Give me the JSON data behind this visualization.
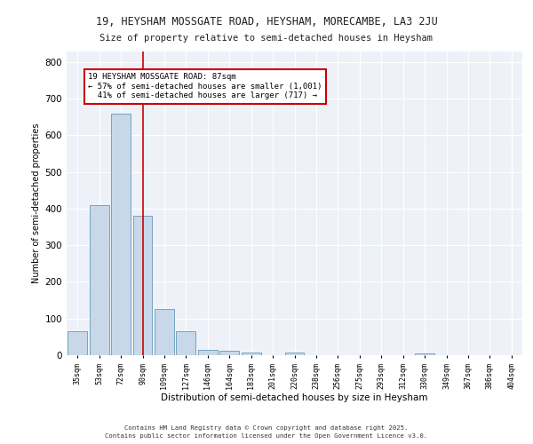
{
  "title1": "19, HEYSHAM MOSSGATE ROAD, HEYSHAM, MORECAMBE, LA3 2JU",
  "title2": "Size of property relative to semi-detached houses in Heysham",
  "xlabel": "Distribution of semi-detached houses by size in Heysham",
  "ylabel": "Number of semi-detached properties",
  "bin_labels": [
    "35sqm",
    "53sqm",
    "72sqm",
    "90sqm",
    "109sqm",
    "127sqm",
    "146sqm",
    "164sqm",
    "183sqm",
    "201sqm",
    "220sqm",
    "238sqm",
    "256sqm",
    "275sqm",
    "293sqm",
    "312sqm",
    "330sqm",
    "349sqm",
    "367sqm",
    "386sqm",
    "404sqm"
  ],
  "bar_values": [
    65,
    410,
    660,
    380,
    125,
    65,
    15,
    12,
    8,
    0,
    8,
    0,
    0,
    0,
    0,
    0,
    5,
    0,
    0,
    0,
    0
  ],
  "bar_color": "#c8d8e8",
  "bar_edge_color": "#6699bb",
  "red_line_index": 3,
  "red_line_color": "#cc0000",
  "annotation_text": "19 HEYSHAM MOSSGATE ROAD: 87sqm\n← 57% of semi-detached houses are smaller (1,001)\n  41% of semi-detached houses are larger (717) →",
  "annotation_box_color": "#ffffff",
  "annotation_box_edge": "#cc0000",
  "ylim": [
    0,
    830
  ],
  "yticks": [
    0,
    100,
    200,
    300,
    400,
    500,
    600,
    700,
    800
  ],
  "background_color": "#eef2f8",
  "footer1": "Contains HM Land Registry data © Crown copyright and database right 2025.",
  "footer2": "Contains public sector information licensed under the Open Government Licence v3.0."
}
